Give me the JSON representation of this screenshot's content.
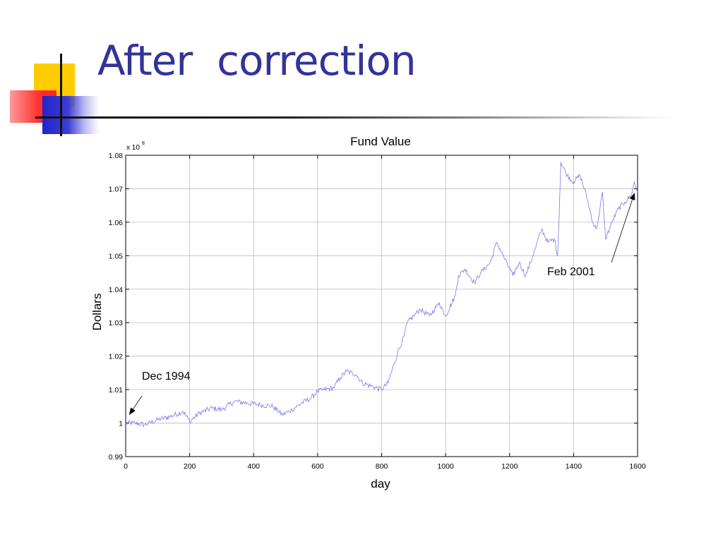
{
  "slide": {
    "title": "After  correction"
  },
  "chart_data": {
    "type": "line",
    "title": "Fund Value",
    "xlabel": "day",
    "ylabel": "Dollars",
    "y_multiplier": "x 10",
    "y_multiplier_exponent": "8",
    "xlim": [
      0,
      1600
    ],
    "ylim": [
      0.99,
      1.08
    ],
    "x_ticks": [
      "0",
      "200",
      "400",
      "600",
      "800",
      "1000",
      "1200",
      "1400",
      "1600"
    ],
    "y_ticks": [
      "0.99",
      "1",
      "1.01",
      "1.02",
      "1.03",
      "1.04",
      "1.05",
      "1.06",
      "1.07",
      "1.08"
    ],
    "x_tick_values": [
      0,
      200,
      400,
      600,
      800,
      1000,
      1200,
      1400,
      1600
    ],
    "y_tick_values": [
      0.99,
      1.0,
      1.01,
      1.02,
      1.03,
      1.04,
      1.05,
      1.06,
      1.07,
      1.08
    ],
    "grid": true,
    "line_color": "#7777ee",
    "series": [
      {
        "x": [
          0,
          30,
          60,
          100,
          140,
          180,
          200,
          230,
          270,
          300,
          340,
          380,
          420,
          460,
          490,
          520,
          550,
          580,
          600,
          620,
          650,
          670,
          690,
          720,
          740,
          770,
          800,
          820,
          850,
          870,
          880,
          900,
          920,
          950,
          980,
          1000,
          1030,
          1040,
          1060,
          1090,
          1110,
          1140,
          1160,
          1180,
          1210,
          1230,
          1250,
          1280,
          1300,
          1320,
          1340,
          1350,
          1355,
          1360,
          1380,
          1400,
          1420,
          1440,
          1460,
          1470,
          1480,
          1490,
          1500,
          1520,
          1540,
          1560,
          1580,
          1590,
          1600
        ],
        "y": [
          1.0,
          1.0,
          0.9995,
          1.001,
          1.002,
          1.0035,
          1.0005,
          1.003,
          1.0045,
          1.004,
          1.0065,
          1.006,
          1.0055,
          1.005,
          1.0025,
          1.004,
          1.006,
          1.0075,
          1.0095,
          1.01,
          1.0105,
          1.0135,
          1.0155,
          1.0145,
          1.012,
          1.011,
          1.01,
          1.012,
          1.021,
          1.026,
          1.03,
          1.032,
          1.034,
          1.032,
          1.036,
          1.032,
          1.038,
          1.044,
          1.046,
          1.042,
          1.045,
          1.048,
          1.054,
          1.05,
          1.044,
          1.048,
          1.044,
          1.052,
          1.058,
          1.054,
          1.055,
          1.05,
          1.062,
          1.078,
          1.074,
          1.072,
          1.074,
          1.068,
          1.06,
          1.058,
          1.062,
          1.069,
          1.055,
          1.06,
          1.064,
          1.066,
          1.068,
          1.072,
          1.069
        ]
      }
    ],
    "annotations": [
      {
        "text": "Dec 1994",
        "x": 12,
        "y": 1.0005
      },
      {
        "text": "Feb 2001",
        "x": 1590,
        "y": 1.0665
      }
    ]
  }
}
